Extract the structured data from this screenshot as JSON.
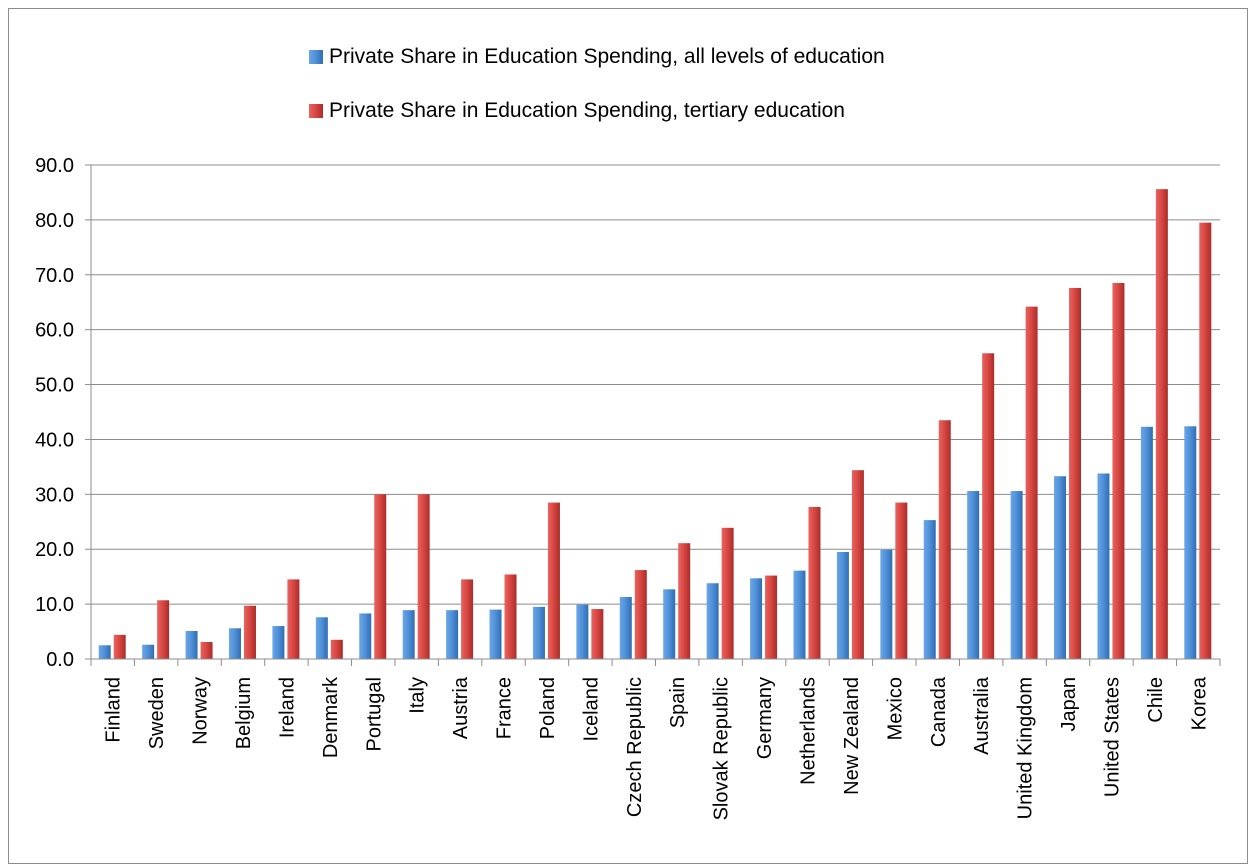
{
  "chart_data": {
    "type": "bar",
    "categories": [
      "Finland",
      "Sweden",
      "Norway",
      "Belgium",
      "Ireland",
      "Denmark",
      "Portugal",
      "Italy",
      "Austria",
      "France",
      "Poland",
      "Iceland",
      "Czech Republic",
      "Spain",
      "Slovak Republic",
      "Germany",
      "Netherlands",
      "New Zealand",
      "Mexico",
      "Canada",
      "Australia",
      "United Kingdom",
      "Japan",
      "United States",
      "Chile",
      "Korea"
    ],
    "series": [
      {
        "name": "Private Share in Education Spending, all levels of education",
        "color": "#4f8fd6",
        "values": [
          2.5,
          2.6,
          5.1,
          5.6,
          6.0,
          7.6,
          8.3,
          8.9,
          8.9,
          9.0,
          9.5,
          9.9,
          11.3,
          12.7,
          13.8,
          14.7,
          16.1,
          19.5,
          19.9,
          25.3,
          30.6,
          30.6,
          33.3,
          33.8,
          42.3,
          42.4
        ]
      },
      {
        "name": "Private Share in Education Spending, tertiary education",
        "color": "#d64541",
        "values": [
          4.4,
          10.7,
          3.1,
          9.7,
          14.5,
          3.5,
          30.0,
          30.0,
          14.5,
          15.4,
          28.5,
          9.1,
          16.2,
          21.1,
          23.9,
          15.2,
          27.7,
          34.4,
          28.5,
          43.5,
          55.7,
          64.2,
          67.6,
          68.5,
          85.6,
          79.5
        ]
      }
    ],
    "ylim": [
      0,
      90
    ],
    "yticks": [
      "0.0",
      "10.0",
      "20.0",
      "30.0",
      "40.0",
      "50.0",
      "60.0",
      "70.0",
      "80.0",
      "90.0"
    ],
    "grid": true,
    "legend_position": "top-center"
  }
}
